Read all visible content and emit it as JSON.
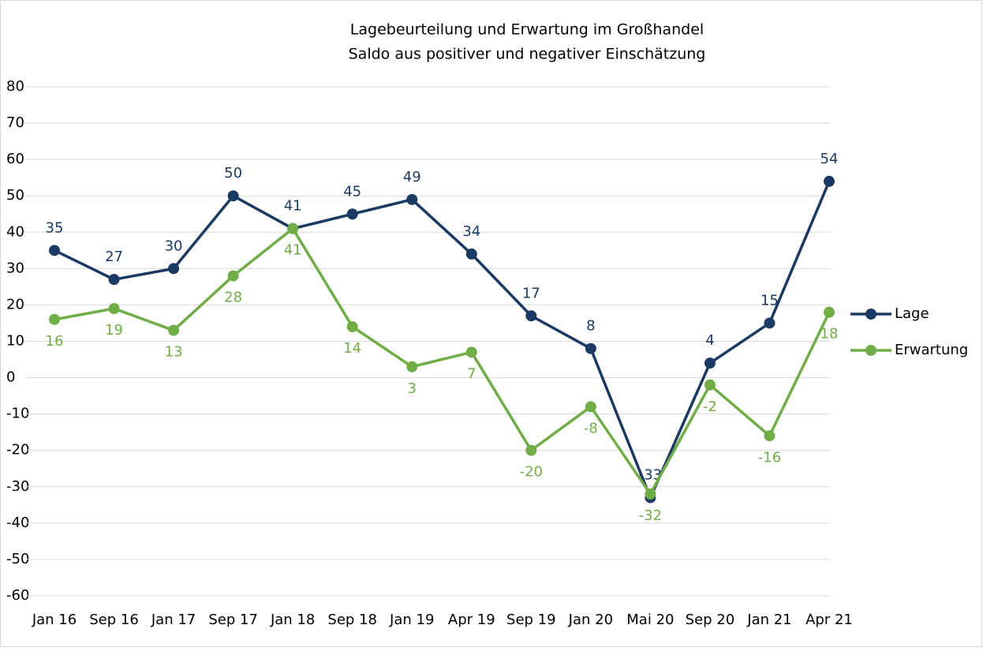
{
  "chart_data": {
    "type": "line",
    "title": "Lagebeurteilung und Erwartung im Großhandel",
    "subtitle": "Saldo aus positiver und negativer Einschätzung",
    "categories": [
      "Jan 16",
      "Sep 16",
      "Jan 17",
      "Sep 17",
      "Jan 18",
      "Sep 18",
      "Jan 19",
      "Apr 19",
      "Sep 19",
      "Jan 20",
      "Mai 20",
      "Sep 20",
      "Jan 21",
      "Apr 21"
    ],
    "series": [
      {
        "name": "Lage",
        "color": "#1b3a63",
        "values": [
          35,
          27,
          30,
          50,
          41,
          45,
          49,
          34,
          17,
          8,
          -33,
          4,
          15,
          54
        ]
      },
      {
        "name": "Erwartung",
        "color": "#70ad47",
        "values": [
          16,
          19,
          13,
          28,
          41,
          14,
          3,
          7,
          -20,
          -8,
          -32,
          -2,
          -16,
          18
        ]
      }
    ],
    "ylim": [
      -60,
      80
    ],
    "yticks": [
      -60,
      -50,
      -40,
      -30,
      -20,
      -10,
      0,
      10,
      20,
      30,
      40,
      50,
      60,
      70,
      80
    ],
    "grid": true,
    "legend": "right"
  }
}
